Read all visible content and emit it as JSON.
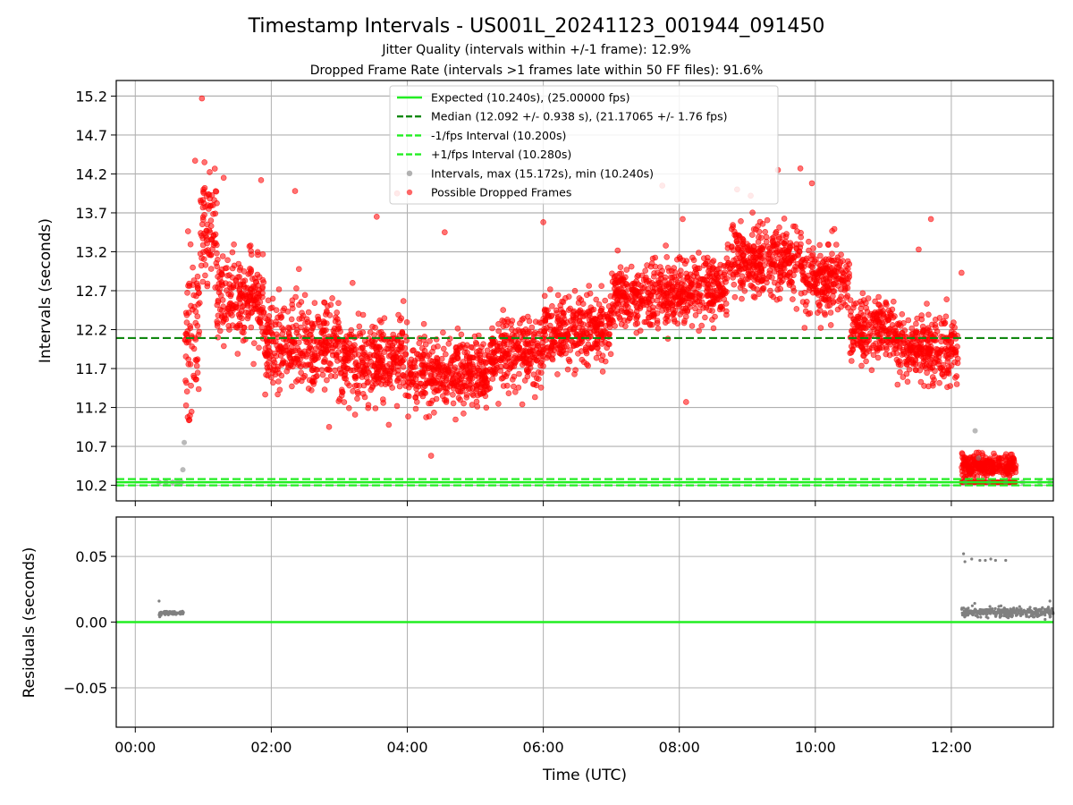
{
  "figure": {
    "title": "Timestamp Intervals - US001L_20241123_001944_091450",
    "subtitle_1": "Jitter Quality (intervals within +/-1 frame): 12.9%",
    "subtitle_2": "Dropped Frame Rate (intervals >1 frames late within 50 FF files): 91.6%"
  },
  "chart_data": [
    {
      "type": "scatter",
      "panel": "intervals",
      "ylabel": "Intervals (seconds)",
      "xlabel": "",
      "y_ticks": [
        10.2,
        10.7,
        11.2,
        11.7,
        12.2,
        12.7,
        13.2,
        13.7,
        14.2,
        14.7,
        15.2
      ],
      "y_tick_labels": [
        "10.2",
        "10.7",
        "11.2",
        "11.7",
        "12.2",
        "12.7",
        "13.2",
        "13.7",
        "14.2",
        "14.7",
        "15.2"
      ],
      "ylim": [
        10.0,
        15.4
      ],
      "xlim_hours": [
        -0.28,
        13.5
      ],
      "grid": true,
      "legend_position": "top-center",
      "reference_lines": [
        {
          "name": "Expected (10.240s), (25.00000 fps)",
          "y": 10.24,
          "style": "solid",
          "color": "#22ee22"
        },
        {
          "name": "Median (12.092 +/- 0.938 s), (21.17065 +/- 1.76 fps)",
          "y": 12.092,
          "style": "dashed",
          "color": "#118811"
        },
        {
          "name": "-1/fps Interval (10.200s)",
          "y": 10.2,
          "style": "dashed",
          "color": "#22ee22"
        },
        {
          "name": "+1/fps Interval (10.280s)",
          "y": 10.28,
          "style": "dashed",
          "color": "#22ee22"
        }
      ],
      "series": [
        {
          "name": "Intervals, max (15.172s), min (10.240s)",
          "color": "#808080",
          "points": [
            [
              0.35,
              10.24
            ],
            [
              0.45,
              10.24
            ],
            [
              0.55,
              10.24
            ],
            [
              0.62,
              10.24
            ],
            [
              0.68,
              10.24
            ],
            [
              0.72,
              10.75
            ],
            [
              0.7,
              10.4
            ],
            [
              12.2,
              10.24
            ],
            [
              12.35,
              10.9
            ],
            [
              12.4,
              10.55
            ],
            [
              12.55,
              10.24
            ],
            [
              12.8,
              10.24
            ],
            [
              13.05,
              10.24
            ],
            [
              13.3,
              10.24
            ],
            [
              13.45,
              10.24
            ]
          ]
        },
        {
          "name": "Possible Dropped Frames",
          "color": "#ff0000",
          "segments": [
            {
              "t0": 0.72,
              "t1": 0.95,
              "mean": 12.1,
              "spread": 0.85
            },
            {
              "t0": 0.95,
              "t1": 1.2,
              "mean": 13.5,
              "spread": 0.55
            },
            {
              "t0": 1.2,
              "t1": 1.9,
              "mean": 12.6,
              "spread": 0.45
            },
            {
              "t0": 1.9,
              "t1": 3.0,
              "mean": 12.0,
              "spread": 0.45
            },
            {
              "t0": 3.0,
              "t1": 4.0,
              "mean": 11.8,
              "spread": 0.4
            },
            {
              "t0": 4.0,
              "t1": 5.2,
              "mean": 11.65,
              "spread": 0.35
            },
            {
              "t0": 5.2,
              "t1": 6.0,
              "mean": 11.9,
              "spread": 0.35
            },
            {
              "t0": 6.0,
              "t1": 7.0,
              "mean": 12.2,
              "spread": 0.35
            },
            {
              "t0": 7.0,
              "t1": 8.0,
              "mean": 12.65,
              "spread": 0.35
            },
            {
              "t0": 8.0,
              "t1": 8.7,
              "mean": 12.75,
              "spread": 0.35
            },
            {
              "t0": 8.7,
              "t1": 9.8,
              "mean": 13.1,
              "spread": 0.35
            },
            {
              "t0": 9.8,
              "t1": 10.5,
              "mean": 12.8,
              "spread": 0.35
            },
            {
              "t0": 10.5,
              "t1": 11.2,
              "mean": 12.2,
              "spread": 0.35
            },
            {
              "t0": 11.2,
              "t1": 12.1,
              "mean": 11.95,
              "spread": 0.35
            },
            {
              "t0": 12.15,
              "t1": 12.95,
              "mean": 10.45,
              "spread": 0.12
            }
          ],
          "outliers": [
            [
              0.98,
              15.17
            ],
            [
              0.88,
              14.37
            ],
            [
              1.3,
              14.15
            ],
            [
              1.85,
              14.12
            ],
            [
              3.85,
              13.95
            ],
            [
              2.35,
              13.98
            ],
            [
              3.55,
              13.65
            ],
            [
              4.55,
              13.45
            ],
            [
              6.0,
              13.58
            ],
            [
              7.75,
              14.05
            ],
            [
              8.05,
              13.62
            ],
            [
              8.85,
              14.0
            ],
            [
              9.05,
              13.92
            ],
            [
              9.45,
              14.25
            ],
            [
              9.78,
              14.27
            ],
            [
              9.95,
              14.08
            ],
            [
              11.7,
              13.62
            ],
            [
              4.35,
              10.58
            ],
            [
              8.1,
              11.27
            ],
            [
              2.85,
              10.95
            ],
            [
              12.15,
              12.93
            ],
            [
              11.52,
              13.23
            ]
          ],
          "flat_band": {
            "t0": 12.15,
            "t1": 12.95,
            "y": 10.24
          }
        }
      ]
    },
    {
      "type": "scatter",
      "panel": "residuals",
      "ylabel": "Residuals (seconds)",
      "xlabel": "Time (UTC)",
      "y_ticks": [
        -0.05,
        0.0,
        0.05
      ],
      "y_tick_labels": [
        "−0.05",
        "0.00",
        "0.05"
      ],
      "ylim": [
        -0.08,
        0.08
      ],
      "x_ticks_hours": [
        0,
        2,
        4,
        6,
        8,
        10,
        12
      ],
      "x_tick_labels": [
        "00:00",
        "02:00",
        "04:00",
        "06:00",
        "08:00",
        "10:00",
        "12:00"
      ],
      "xlim_hours": [
        -0.28,
        13.5
      ],
      "grid": true,
      "zero_line_color": "#22ee22",
      "series": [
        {
          "name": "residuals",
          "color": "#808080",
          "clusters": [
            {
              "t0": 0.35,
              "t1": 0.72,
              "mean": 0.007,
              "spread": 0.0012
            },
            {
              "t0": 12.15,
              "t1": 13.5,
              "mean": 0.0075,
              "spread": 0.003
            }
          ],
          "outliers": [
            [
              0.35,
              0.016
            ],
            [
              0.36,
              0.004
            ],
            [
              12.18,
              0.052
            ],
            [
              12.2,
              0.046
            ],
            [
              12.3,
              0.048
            ],
            [
              12.42,
              0.047
            ],
            [
              12.5,
              0.047
            ],
            [
              12.58,
              0.048
            ],
            [
              12.65,
              0.047
            ],
            [
              12.8,
              0.047
            ],
            [
              13.45,
              0.016
            ]
          ]
        }
      ]
    }
  ]
}
